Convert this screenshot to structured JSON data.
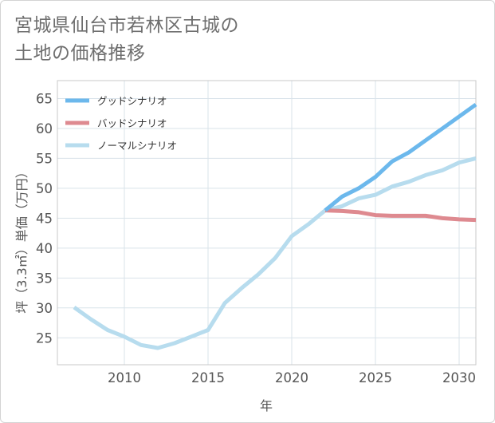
{
  "title_line1": "宮城県仙台市若林区古城の",
  "title_line2": "土地の価格推移",
  "chart_data": {
    "type": "line",
    "title": "宮城県仙台市若林区古城の土地の価格推移",
    "xlabel": "年",
    "ylabel": "坪（3.3㎡）単価（万円）",
    "xlim": [
      2006,
      2031
    ],
    "ylim": [
      20.5,
      68
    ],
    "x_ticks": [
      2010,
      2015,
      2020,
      2025,
      2030
    ],
    "y_ticks": [
      25,
      30,
      35,
      40,
      45,
      50,
      55,
      60,
      65
    ],
    "grid": true,
    "legend_position": "top-left",
    "series": [
      {
        "name": "グッドシナリオ",
        "color": "#6cb8ec",
        "x": [
          2022,
          2023,
          2024,
          2025,
          2026,
          2027,
          2028,
          2029,
          2030,
          2031
        ],
        "values": [
          46.3,
          48.6,
          50.0,
          51.9,
          54.5,
          56.0,
          58.0,
          60.0,
          62.0,
          64.0
        ]
      },
      {
        "name": "バッドシナリオ",
        "color": "#de8a90",
        "x": [
          2022,
          2023,
          2024,
          2025,
          2026,
          2027,
          2028,
          2029,
          2030,
          2031
        ],
        "values": [
          46.3,
          46.2,
          46.0,
          45.5,
          45.4,
          45.4,
          45.4,
          45.0,
          44.8,
          44.7
        ]
      },
      {
        "name": "ノーマルシナリオ",
        "color": "#b7dcee",
        "x": [
          2007,
          2008,
          2009,
          2010,
          2011,
          2012,
          2013,
          2014,
          2015,
          2016,
          2017,
          2018,
          2019,
          2020,
          2021,
          2022,
          2023,
          2024,
          2025,
          2026,
          2027,
          2028,
          2029,
          2030,
          2031
        ],
        "values": [
          30.1,
          28.1,
          26.3,
          25.2,
          23.8,
          23.3,
          24.1,
          25.2,
          26.3,
          30.8,
          33.3,
          35.6,
          38.3,
          42.0,
          44.0,
          46.3,
          47.0,
          48.3,
          48.9,
          50.3,
          51.1,
          52.2,
          53.0,
          54.3,
          55.0
        ]
      }
    ]
  }
}
